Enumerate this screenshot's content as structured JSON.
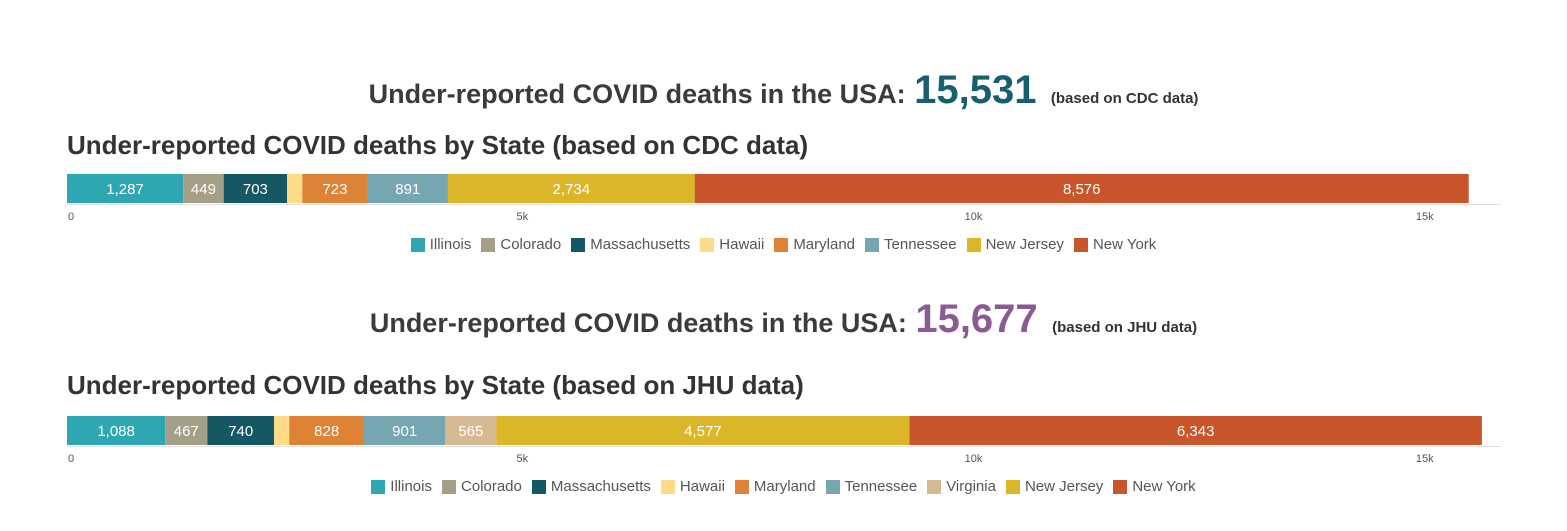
{
  "header_cdc": {
    "text": "Under-reported COVID deaths in the USA:",
    "total": "15,531",
    "note": "(based on CDC data)",
    "total_color": "#175f6c"
  },
  "header_jhu": {
    "text": "Under-reported COVID deaths in the USA:",
    "total": "15,677",
    "note": "(based on JHU data)",
    "total_color": "#8a5a94"
  },
  "colors": {
    "Illinois": "#2fa7b3",
    "Colorado": "#a59f87",
    "Massachusetts": "#155865",
    "Hawaii": "#fedb88",
    "Maryland": "#de8336",
    "Tennessee": "#77a6b3",
    "Virginia": "#d7ba93",
    "New Jersey": "#dbb628",
    "New York": "#c9562a"
  },
  "chart_data": [
    {
      "type": "bar",
      "orientation": "horizontal",
      "stacked": true,
      "title": "Under-reported COVID deaths by State (based on CDC data)",
      "xlim": [
        0,
        15800
      ],
      "xticks": [
        0,
        5000,
        10000,
        15000
      ],
      "xtick_labels": [
        "0",
        "5k",
        "10k",
        "15k"
      ],
      "legend_position": "bottom",
      "series": [
        {
          "name": "Illinois",
          "value": 1287,
          "label": "1,287"
        },
        {
          "name": "Colorado",
          "value": 449,
          "label": "449"
        },
        {
          "name": "Massachusetts",
          "value": 703,
          "label": "703"
        },
        {
          "name": "Hawaii",
          "value": 168,
          "label": ""
        },
        {
          "name": "Maryland",
          "value": 723,
          "label": "723"
        },
        {
          "name": "Tennessee",
          "value": 891,
          "label": "891"
        },
        {
          "name": "New Jersey",
          "value": 2734,
          "label": "2,734"
        },
        {
          "name": "New York",
          "value": 8576,
          "label": "8,576"
        }
      ]
    },
    {
      "type": "bar",
      "orientation": "horizontal",
      "stacked": true,
      "title": "Under-reported COVID deaths by State (based on JHU data)",
      "xlim": [
        0,
        15800
      ],
      "xticks": [
        0,
        5000,
        10000,
        15000
      ],
      "xtick_labels": [
        "0",
        "5k",
        "10k",
        "15k"
      ],
      "legend_position": "bottom",
      "series": [
        {
          "name": "Illinois",
          "value": 1088,
          "label": "1,088"
        },
        {
          "name": "Colorado",
          "value": 467,
          "label": "467"
        },
        {
          "name": "Massachusetts",
          "value": 740,
          "label": "740"
        },
        {
          "name": "Hawaii",
          "value": 168,
          "label": ""
        },
        {
          "name": "Maryland",
          "value": 828,
          "label": "828"
        },
        {
          "name": "Tennessee",
          "value": 901,
          "label": "901"
        },
        {
          "name": "Virginia",
          "value": 565,
          "label": "565"
        },
        {
          "name": "New Jersey",
          "value": 4577,
          "label": "4,577"
        },
        {
          "name": "New York",
          "value": 6343,
          "label": "6,343"
        }
      ]
    }
  ]
}
